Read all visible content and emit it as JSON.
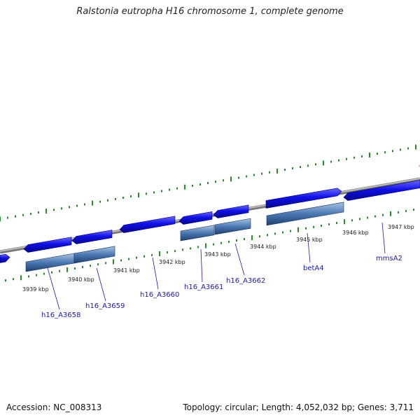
{
  "title": "Ralstonia eutropha H16 chromosome 1, complete genome",
  "footer": {
    "accession": "Accession: NC_008313",
    "topology": "Topology: circular; Length: 4,052,032 bp; Genes: 3,711"
  },
  "ruler": [
    "3939 kbp",
    "3940 kbp",
    "3941 kbp",
    "3942 kbp",
    "3943 kbp",
    "3944 kbp",
    "3945 kbp",
    "3946 kbp",
    "3947 kbp"
  ],
  "gene_labels": [
    "h16_A3658",
    "h16_A3659",
    "h16_A3660",
    "h16_A3661",
    "h16_A3662",
    "betA4",
    "mmsA2"
  ],
  "colors": {
    "cds": "#1010e8",
    "gene": "#4a78b4",
    "backbone": "#8a8a8a",
    "tick": "#2a8a2a",
    "label": "#1a1aa8"
  }
}
